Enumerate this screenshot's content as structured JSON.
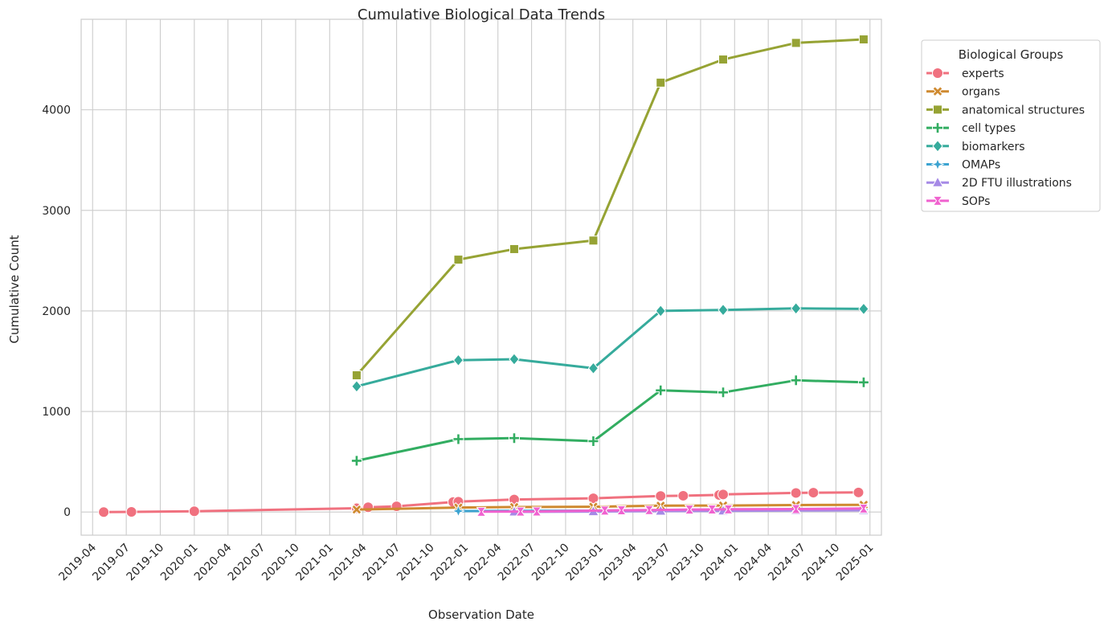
{
  "chart_data": {
    "type": "line",
    "title": "Cumulative Biological Data Trends",
    "xlabel": "Observation Date",
    "ylabel": "Cumulative Count",
    "x_ticks": [
      "2019-04",
      "2019-07",
      "2019-10",
      "2020-01",
      "2020-04",
      "2020-07",
      "2020-10",
      "2021-01",
      "2021-04",
      "2021-07",
      "2021-10",
      "2022-01",
      "2022-04",
      "2022-07",
      "2022-10",
      "2023-01",
      "2023-04",
      "2023-07",
      "2023-10",
      "2024-01",
      "2024-04",
      "2024-07",
      "2024-10",
      "2025-01"
    ],
    "y_ticks": [
      0,
      1000,
      2000,
      3000,
      4000
    ],
    "xlim": [
      "2019-03-01",
      "2025-02-01"
    ],
    "ylim": [
      -230,
      4900
    ],
    "grid": true,
    "legend": {
      "title": "Biological Groups",
      "placement": "outside-top-right"
    },
    "series": [
      {
        "name": "experts",
        "color": "#f0717f",
        "marker": "circle",
        "points": [
          [
            "2019-05-01",
            0
          ],
          [
            "2019-07-15",
            2
          ],
          [
            "2020-01-01",
            8
          ],
          [
            "2021-03-15",
            38
          ],
          [
            "2021-04-15",
            48
          ],
          [
            "2021-07-01",
            57
          ],
          [
            "2021-12-01",
            100
          ],
          [
            "2021-12-15",
            103
          ],
          [
            "2022-05-15",
            125
          ],
          [
            "2022-12-15",
            137
          ],
          [
            "2023-06-15",
            160
          ],
          [
            "2023-08-15",
            162
          ],
          [
            "2023-11-20",
            170
          ],
          [
            "2023-12-01",
            175
          ],
          [
            "2024-06-15",
            190
          ],
          [
            "2024-08-01",
            193
          ],
          [
            "2024-12-01",
            195
          ]
        ]
      },
      {
        "name": "organs",
        "color": "#cf8a30",
        "marker": "x",
        "points": [
          [
            "2021-03-15",
            25
          ],
          [
            "2021-12-15",
            45
          ],
          [
            "2022-05-15",
            50
          ],
          [
            "2022-12-15",
            53
          ],
          [
            "2023-06-15",
            63
          ],
          [
            "2023-12-01",
            65
          ],
          [
            "2024-06-15",
            70
          ],
          [
            "2024-12-15",
            72
          ]
        ]
      },
      {
        "name": "anatomical structures",
        "color": "#96a334",
        "marker": "square",
        "points": [
          [
            "2021-03-15",
            1360
          ],
          [
            "2021-12-15",
            2510
          ],
          [
            "2022-05-15",
            2615
          ],
          [
            "2022-12-15",
            2700
          ],
          [
            "2023-06-15",
            4270
          ],
          [
            "2023-12-01",
            4500
          ],
          [
            "2024-06-15",
            4665
          ],
          [
            "2024-12-15",
            4700
          ]
        ]
      },
      {
        "name": "cell types",
        "color": "#32ad61",
        "marker": "plus",
        "points": [
          [
            "2021-03-15",
            510
          ],
          [
            "2021-12-15",
            725
          ],
          [
            "2022-05-15",
            735
          ],
          [
            "2022-12-15",
            705
          ],
          [
            "2023-06-15",
            1210
          ],
          [
            "2023-12-01",
            1190
          ],
          [
            "2024-06-15",
            1310
          ],
          [
            "2024-12-15",
            1290
          ]
        ]
      },
      {
        "name": "biomarkers",
        "color": "#36ab9c",
        "marker": "diamond",
        "points": [
          [
            "2021-03-15",
            1250
          ],
          [
            "2021-12-15",
            1510
          ],
          [
            "2022-05-15",
            1520
          ],
          [
            "2022-12-15",
            1430
          ],
          [
            "2023-06-15",
            2000
          ],
          [
            "2023-12-01",
            2010
          ],
          [
            "2024-06-15",
            2025
          ],
          [
            "2024-12-15",
            2020
          ]
        ]
      },
      {
        "name": "OMAPs",
        "color": "#3ba3d1",
        "marker": "star4",
        "points": [
          [
            "2021-12-15",
            10
          ],
          [
            "2022-05-15",
            12
          ],
          [
            "2022-12-15",
            14
          ],
          [
            "2023-06-15",
            18
          ],
          [
            "2023-12-01",
            20
          ],
          [
            "2024-06-15",
            22
          ],
          [
            "2024-12-15",
            24
          ]
        ]
      },
      {
        "name": "2D FTU illustrations",
        "color": "#a68ae6",
        "marker": "triangle",
        "points": [
          [
            "2022-05-15",
            2
          ],
          [
            "2022-12-15",
            5
          ],
          [
            "2023-06-15",
            10
          ],
          [
            "2023-12-01",
            12
          ],
          [
            "2024-06-15",
            15
          ],
          [
            "2024-12-15",
            18
          ]
        ]
      },
      {
        "name": "SOPs",
        "color": "#f062cf",
        "marker": "hourglass",
        "points": [
          [
            "2022-02-15",
            3
          ],
          [
            "2022-06-01",
            5
          ],
          [
            "2022-07-15",
            6
          ],
          [
            "2023-01-15",
            15
          ],
          [
            "2023-03-01",
            18
          ],
          [
            "2023-05-15",
            20
          ],
          [
            "2023-09-01",
            25
          ],
          [
            "2023-11-01",
            26
          ],
          [
            "2023-12-15",
            27
          ],
          [
            "2024-06-15",
            30
          ],
          [
            "2024-12-15",
            35
          ]
        ]
      }
    ]
  }
}
